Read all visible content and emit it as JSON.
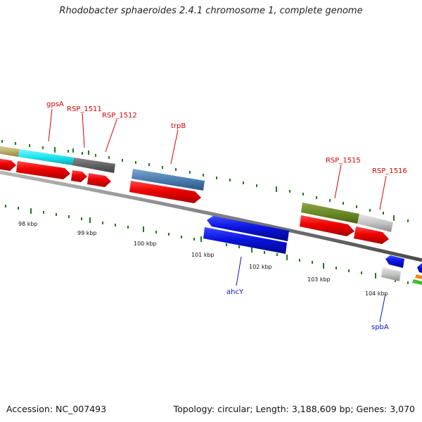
{
  "title": "Rhodobacter sphaeroides 2.4.1 chromosome 1, complete genome",
  "footer": {
    "accession": "Accession: NC_007493",
    "summary": "Topology: circular; Length: 3,188,609 bp; Genes: 3,070"
  },
  "scale_labels": [
    "98 kbp",
    "99 kbp",
    "100 kbp",
    "101 kbp",
    "102 kbp",
    "103 kbp",
    "104 kbp"
  ],
  "gene_labels": {
    "top": [
      "gpsA",
      "RSP_1511",
      "RSP_1512",
      "trpB",
      "RSP_1515",
      "RSP_1516"
    ],
    "bottom": [
      "ahcY",
      "spbA"
    ]
  },
  "colors": {
    "cds_red": "#e80000",
    "gene_blue": "#0a14e0",
    "strand_line": "#888888",
    "tick_green": "#1e7a1e",
    "top_label": "#d40000",
    "bottom_label": "#1010c8"
  }
}
